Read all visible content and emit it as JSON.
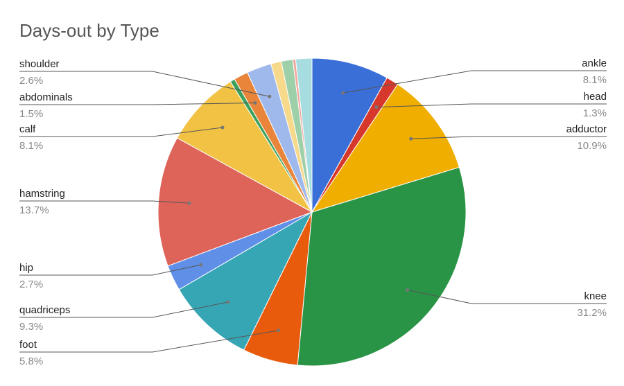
{
  "chart_data": {
    "type": "pie",
    "title": "Days-out by Type",
    "categories": [
      "ankle",
      "head",
      "adductor",
      "knee",
      "foot",
      "quadriceps",
      "hip",
      "hamstring",
      "calf",
      null,
      "abdominals",
      "shoulder",
      null,
      null,
      null,
      null
    ],
    "values": [
      8.1,
      1.3,
      10.9,
      31.2,
      5.8,
      9.3,
      2.7,
      13.7,
      8.1,
      0.5,
      1.5,
      2.6,
      1.1,
      1.2,
      0.3,
      1.7
    ],
    "value_labels": [
      "8.1%",
      "1.3%",
      "10.9%",
      "31.2%",
      "5.8%",
      "9.3%",
      "2.7%",
      "13.7%",
      "8.1%",
      null,
      "1.5%",
      "2.6%",
      null,
      null,
      null,
      null
    ],
    "colors": [
      "#3b6fd8",
      "#d6392c",
      "#efae00",
      "#2a9446",
      "#e95b0c",
      "#36a6b4",
      "#5f8fe6",
      "#de645a",
      "#f1c243",
      "#3aa05b",
      "#e8853a",
      "#a0b9ec",
      "#f6d98a",
      "#9dcfa9",
      "#f2a79c",
      "#a7dde1"
    ]
  }
}
